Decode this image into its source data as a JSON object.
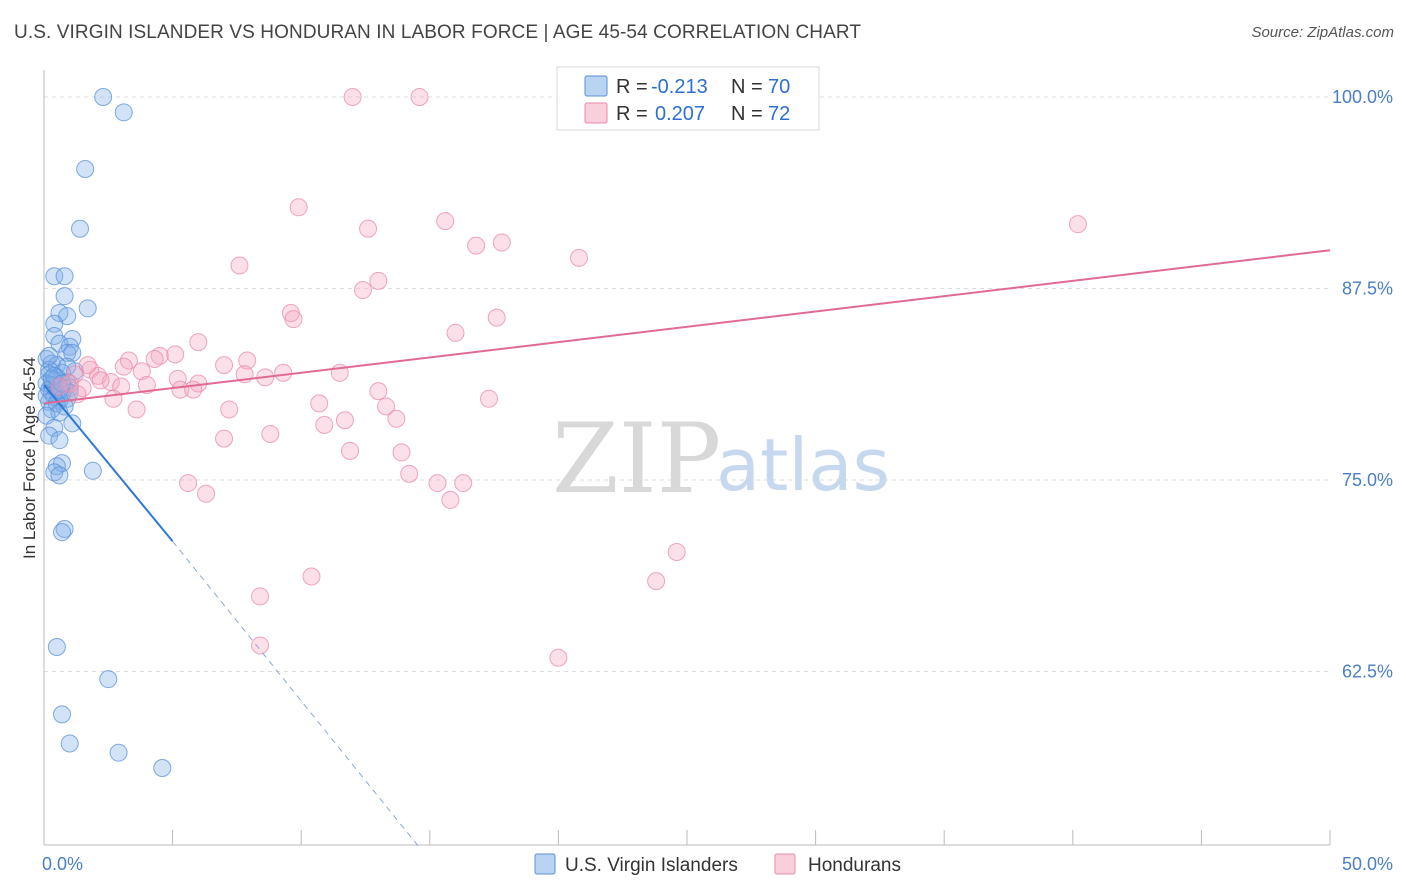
{
  "header": {
    "title": "U.S. VIRGIN ISLANDER VS HONDURAN IN LABOR FORCE | AGE 45-54 CORRELATION CHART",
    "source": "Source: ZipAtlas.com"
  },
  "watermark": {
    "zip": "ZIP",
    "atlas": "atlas"
  },
  "chart_data": {
    "type": "scatter",
    "title": "U.S. VIRGIN ISLANDER VS HONDURAN IN LABOR FORCE | AGE 45-54 CORRELATION CHART",
    "xlabel": "",
    "ylabel": "In Labor Force | Age 45-54",
    "xlim": [
      0,
      50
    ],
    "ylim": [
      51.0,
      101.2
    ],
    "x_tick_labels": [
      {
        "value": 0,
        "label": "0.0%"
      },
      {
        "value": 50,
        "label": "50.0%"
      }
    ],
    "y_tick_labels": [
      {
        "value": 100.0,
        "label": "100.0%"
      },
      {
        "value": 87.5,
        "label": "87.5%"
      },
      {
        "value": 75.0,
        "label": "75.0%"
      },
      {
        "value": 62.5,
        "label": "62.5%"
      }
    ],
    "x_minor_ticks": [
      5,
      10,
      15,
      20,
      25,
      30,
      35,
      40,
      45,
      50
    ],
    "grid": true,
    "legend": {
      "placement": "top-center",
      "rows": [
        {
          "r_label": "R = ",
          "r_value": "-0.213",
          "n_label": "N = ",
          "n_value": "70"
        },
        {
          "r_label": "R = ",
          "r_value": "0.207",
          "n_label": "N = ",
          "n_value": "72"
        }
      ]
    },
    "series": [
      {
        "name": "U.S. Virgin Islanders",
        "color": "#7fb0ea",
        "stroke": "#5a8fd6",
        "line_color": "#2e78d6",
        "r": -0.213,
        "n": 70,
        "trend": {
          "x0": 0,
          "y0": 81.2,
          "x1": 5.0,
          "y1": 71.0,
          "dash_to_x": 14.6,
          "dash_to_y": 51.0
        },
        "points": [
          [
            2.3,
            100.0
          ],
          [
            3.1,
            99.0
          ],
          [
            1.6,
            95.3
          ],
          [
            1.4,
            91.4
          ],
          [
            0.4,
            88.3
          ],
          [
            0.8,
            88.3
          ],
          [
            0.8,
            87.0
          ],
          [
            1.7,
            86.2
          ],
          [
            0.6,
            85.9
          ],
          [
            0.9,
            85.7
          ],
          [
            0.4,
            85.2
          ],
          [
            0.4,
            84.4
          ],
          [
            1.1,
            84.2
          ],
          [
            0.6,
            83.9
          ],
          [
            1.0,
            83.7
          ],
          [
            0.9,
            83.3
          ],
          [
            1.1,
            83.3
          ],
          [
            0.1,
            82.9
          ],
          [
            0.3,
            82.6
          ],
          [
            0.5,
            82.5
          ],
          [
            0.2,
            82.2
          ],
          [
            1.2,
            82.1
          ],
          [
            0.7,
            82.0
          ],
          [
            0.2,
            81.9
          ],
          [
            0.5,
            81.7
          ],
          [
            0.4,
            81.5
          ],
          [
            0.9,
            81.4
          ],
          [
            0.1,
            81.3
          ],
          [
            0.3,
            81.2
          ],
          [
            0.6,
            81.1
          ],
          [
            0.8,
            81.0
          ],
          [
            1.0,
            81.0
          ],
          [
            0.2,
            80.9
          ],
          [
            0.5,
            80.8
          ],
          [
            0.3,
            80.7
          ],
          [
            0.7,
            80.6
          ],
          [
            0.1,
            80.5
          ],
          [
            0.4,
            80.4
          ],
          [
            0.9,
            80.3
          ],
          [
            0.6,
            80.2
          ],
          [
            0.2,
            80.1
          ],
          [
            0.5,
            80.0
          ],
          [
            0.8,
            79.8
          ],
          [
            0.3,
            79.6
          ],
          [
            0.6,
            79.4
          ],
          [
            0.1,
            79.2
          ],
          [
            1.1,
            78.7
          ],
          [
            0.4,
            78.4
          ],
          [
            0.2,
            77.9
          ],
          [
            0.6,
            77.6
          ],
          [
            0.7,
            76.1
          ],
          [
            0.5,
            75.9
          ],
          [
            0.4,
            75.5
          ],
          [
            0.6,
            75.3
          ],
          [
            1.9,
            75.6
          ],
          [
            0.8,
            71.8
          ],
          [
            0.7,
            71.6
          ],
          [
            0.5,
            64.1
          ],
          [
            2.5,
            62.0
          ],
          [
            0.7,
            59.7
          ],
          [
            1.0,
            57.8
          ],
          [
            2.9,
            57.2
          ],
          [
            4.6,
            56.2
          ],
          [
            0.3,
            81.6
          ],
          [
            0.9,
            82.4
          ],
          [
            0.2,
            83.1
          ],
          [
            0.6,
            80.9
          ],
          [
            1.0,
            80.7
          ],
          [
            0.4,
            81.8
          ],
          [
            0.7,
            81.3
          ]
        ]
      },
      {
        "name": "Hondurans",
        "color": "#f4a7c0",
        "stroke": "#e98aaa",
        "line_color": "#e06a94",
        "r": 0.207,
        "n": 72,
        "trend": {
          "x0": 0,
          "y0": 80.0,
          "x1": 50,
          "y1": 90.0
        },
        "points": [
          [
            12.0,
            100.0
          ],
          [
            14.6,
            100.0
          ],
          [
            29.8,
            100.0
          ],
          [
            9.9,
            92.8
          ],
          [
            15.6,
            91.9
          ],
          [
            12.6,
            91.4
          ],
          [
            40.2,
            91.7
          ],
          [
            16.8,
            90.3
          ],
          [
            17.8,
            90.5
          ],
          [
            20.8,
            89.5
          ],
          [
            7.6,
            89.0
          ],
          [
            13.0,
            88.0
          ],
          [
            12.4,
            87.4
          ],
          [
            9.6,
            85.9
          ],
          [
            9.7,
            85.5
          ],
          [
            17.6,
            85.6
          ],
          [
            16.0,
            84.6
          ],
          [
            6.0,
            84.0
          ],
          [
            5.1,
            83.2
          ],
          [
            4.5,
            83.1
          ],
          [
            4.3,
            82.9
          ],
          [
            3.3,
            82.8
          ],
          [
            7.0,
            82.5
          ],
          [
            7.9,
            82.8
          ],
          [
            3.1,
            82.4
          ],
          [
            1.8,
            82.2
          ],
          [
            2.1,
            81.8
          ],
          [
            3.8,
            82.1
          ],
          [
            1.2,
            81.9
          ],
          [
            7.8,
            81.9
          ],
          [
            9.3,
            82.0
          ],
          [
            11.5,
            82.0
          ],
          [
            5.2,
            81.6
          ],
          [
            6.0,
            81.3
          ],
          [
            2.6,
            81.4
          ],
          [
            3.0,
            81.1
          ],
          [
            1.5,
            81.0
          ],
          [
            5.3,
            80.9
          ],
          [
            5.8,
            80.9
          ],
          [
            2.7,
            80.3
          ],
          [
            13.0,
            80.8
          ],
          [
            17.3,
            80.3
          ],
          [
            10.7,
            80.0
          ],
          [
            13.3,
            79.8
          ],
          [
            3.6,
            79.6
          ],
          [
            7.2,
            79.6
          ],
          [
            13.7,
            79.0
          ],
          [
            11.7,
            78.9
          ],
          [
            10.9,
            78.6
          ],
          [
            8.8,
            78.0
          ],
          [
            7.0,
            77.7
          ],
          [
            11.9,
            76.9
          ],
          [
            13.9,
            76.8
          ],
          [
            14.2,
            75.4
          ],
          [
            5.6,
            74.8
          ],
          [
            15.3,
            74.8
          ],
          [
            16.3,
            74.8
          ],
          [
            6.3,
            74.1
          ],
          [
            15.8,
            73.7
          ],
          [
            24.6,
            70.3
          ],
          [
            10.4,
            68.7
          ],
          [
            23.8,
            68.4
          ],
          [
            8.4,
            67.4
          ],
          [
            8.4,
            64.2
          ],
          [
            20.0,
            63.4
          ],
          [
            1.0,
            81.3
          ],
          [
            2.2,
            81.5
          ],
          [
            1.7,
            82.5
          ],
          [
            4.0,
            81.2
          ],
          [
            8.6,
            81.7
          ],
          [
            0.6,
            81.1
          ],
          [
            1.3,
            80.6
          ]
        ]
      }
    ]
  }
}
